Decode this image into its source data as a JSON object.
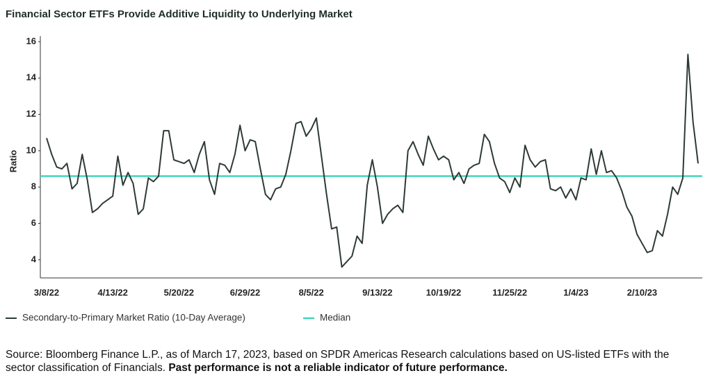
{
  "chart_data": {
    "type": "line",
    "title": "Financial Sector ETFs Provide Additive Liquidity to Underlying Market",
    "y_label": "Ratio",
    "categories": [
      "3/8/22",
      null,
      null,
      null,
      null,
      null,
      null,
      null,
      null,
      null,
      null,
      null,
      null,
      "4/13/22",
      null,
      null,
      null,
      null,
      null,
      null,
      null,
      null,
      null,
      null,
      null,
      null,
      "5/20/22",
      null,
      null,
      null,
      null,
      null,
      null,
      null,
      null,
      null,
      null,
      null,
      null,
      "6/29/22",
      null,
      null,
      null,
      null,
      null,
      null,
      null,
      null,
      null,
      null,
      null,
      null,
      "8/5/22",
      null,
      null,
      null,
      null,
      null,
      null,
      null,
      null,
      null,
      null,
      null,
      null,
      "9/13/22",
      null,
      null,
      null,
      null,
      null,
      null,
      null,
      null,
      null,
      null,
      null,
      null,
      "10/19/22",
      null,
      null,
      null,
      null,
      null,
      null,
      null,
      null,
      null,
      null,
      null,
      null,
      "11/25/22",
      null,
      null,
      null,
      null,
      null,
      null,
      null,
      null,
      null,
      null,
      null,
      null,
      "1/4/23",
      null,
      null,
      null,
      null,
      null,
      null,
      null,
      null,
      null,
      null,
      null,
      null,
      "2/10/23",
      null,
      null,
      null,
      null,
      null,
      null,
      null,
      null,
      null,
      null,
      null
    ],
    "series": [
      {
        "name": "Secondary-to-Primary Market Ratio (10-Day Average)",
        "color": "#2d3a33",
        "values": [
          10.7,
          9.8,
          9.1,
          9.0,
          9.3,
          7.9,
          8.2,
          9.8,
          8.4,
          6.6,
          6.8,
          7.1,
          7.3,
          7.5,
          9.7,
          8.1,
          8.8,
          8.2,
          6.5,
          6.8,
          8.5,
          8.3,
          8.6,
          11.1,
          11.1,
          9.5,
          9.4,
          9.3,
          9.5,
          8.8,
          9.8,
          10.5,
          8.4,
          7.6,
          9.3,
          9.2,
          8.8,
          9.8,
          11.4,
          10.0,
          10.6,
          10.5,
          9.0,
          7.6,
          7.3,
          7.9,
          8.0,
          8.7,
          10.0,
          11.5,
          11.6,
          10.8,
          11.2,
          11.8,
          9.7,
          7.6,
          5.7,
          5.8,
          3.6,
          3.9,
          4.2,
          5.3,
          4.9,
          8.1,
          9.5,
          8.0,
          6.0,
          6.5,
          6.8,
          7.0,
          6.6,
          10.0,
          10.5,
          9.8,
          9.2,
          10.8,
          10.1,
          9.5,
          9.7,
          9.5,
          8.4,
          8.8,
          8.2,
          9.0,
          9.2,
          9.3,
          10.9,
          10.5,
          9.3,
          8.5,
          8.3,
          7.7,
          8.5,
          8.0,
          10.3,
          9.5,
          9.1,
          9.4,
          9.5,
          7.9,
          7.8,
          8.0,
          7.4,
          7.9,
          7.3,
          8.5,
          8.4,
          10.1,
          8.7,
          10.0,
          8.8,
          8.9,
          8.5,
          7.8,
          6.9,
          6.4,
          5.4,
          4.9,
          4.4,
          4.5,
          5.6,
          5.3,
          6.5,
          8.0,
          7.6,
          8.5,
          15.3,
          11.6,
          9.3
        ]
      }
    ],
    "reference_line": {
      "name": "Median",
      "color": "#3fd6b8",
      "value": 8.6
    },
    "ylim": [
      3,
      16
    ],
    "yticks": [
      4,
      6,
      8,
      10,
      12,
      14,
      16
    ],
    "grid": false,
    "legend": "bottom-left"
  },
  "note": {
    "text": "Source: Bloomberg Finance L.P., as of March 17, 2023, based on SPDR Americas Research calculations based on US-listed ETFs with the sector classification of Financials. ",
    "bold": "Past performance is not a reliable indicator of future performance."
  }
}
